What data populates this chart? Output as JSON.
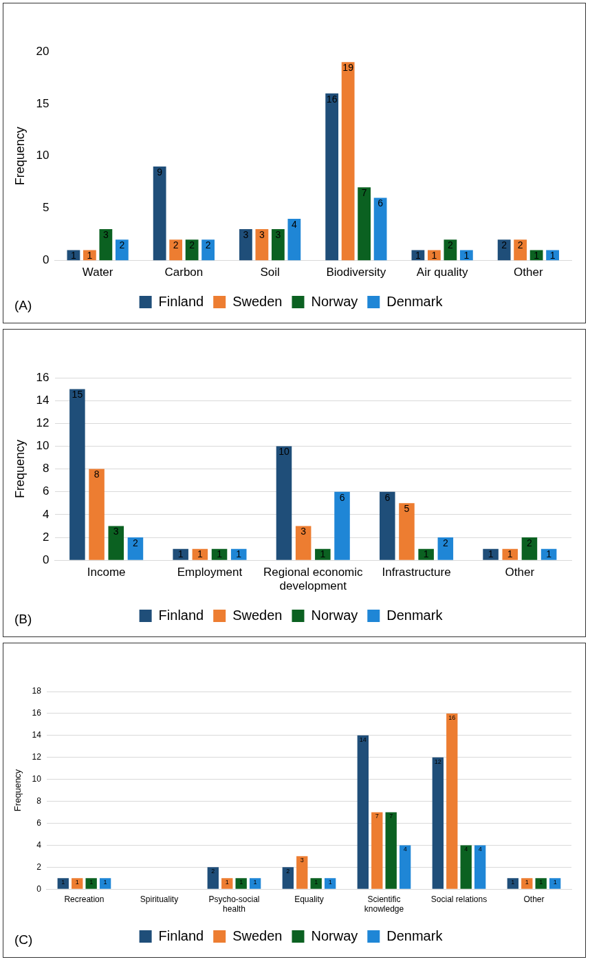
{
  "chart_data": [
    {
      "type": "bar",
      "categories": [
        "Water",
        "Carbon",
        "Soil",
        "Biodiversity",
        "Air quality",
        "Other"
      ],
      "ylabel": "Frequency",
      "ylim": [
        0,
        20
      ],
      "yticks": [
        0,
        5,
        10,
        15,
        20
      ],
      "grid": false,
      "legend": "bottom",
      "data_labels": true,
      "annotations": [
        "(A)"
      ],
      "series": [
        {
          "name": "Finland",
          "color": "#1f4e79",
          "values": [
            1,
            9,
            3,
            16,
            1,
            2
          ]
        },
        {
          "name": "Sweden",
          "color": "#ed7d31",
          "values": [
            1,
            2,
            3,
            19,
            1,
            2
          ]
        },
        {
          "name": "Norway",
          "color": "#0b6121",
          "values": [
            3,
            2,
            3,
            7,
            2,
            1
          ]
        },
        {
          "name": "Denmark",
          "color": "#1f86d6",
          "values": [
            2,
            2,
            4,
            6,
            1,
            1
          ]
        }
      ]
    },
    {
      "type": "bar",
      "categories": [
        "Income",
        "Employment",
        "Regional economic development",
        "Infrastructure",
        "Other"
      ],
      "ylabel": "Frequency",
      "ylim": [
        0,
        16
      ],
      "yticks": [
        0,
        2,
        4,
        6,
        8,
        10,
        12,
        14,
        16
      ],
      "grid": "y",
      "legend": "bottom",
      "data_labels": true,
      "annotations": [
        "(B)"
      ],
      "series": [
        {
          "name": "Finland",
          "color": "#1f4e79",
          "values": [
            15,
            1,
            10,
            6,
            1
          ]
        },
        {
          "name": "Sweden",
          "color": "#ed7d31",
          "values": [
            8,
            1,
            3,
            5,
            1
          ]
        },
        {
          "name": "Norway",
          "color": "#0b6121",
          "values": [
            3,
            1,
            1,
            1,
            2
          ]
        },
        {
          "name": "Denmark",
          "color": "#1f86d6",
          "values": [
            2,
            1,
            6,
            2,
            1
          ]
        }
      ]
    },
    {
      "type": "bar",
      "categories": [
        "Recreation",
        "Spirituality",
        "Psycho-social health",
        "Equality",
        "Scientific knowledge",
        "Social relations",
        "Other"
      ],
      "ylabel": "Frequency",
      "ylim": [
        0,
        18
      ],
      "yticks": [
        0,
        2,
        4,
        6,
        8,
        10,
        12,
        14,
        16,
        18
      ],
      "grid": "y",
      "legend": "bottom",
      "annotations": [
        "(C)"
      ],
      "series": [
        {
          "name": "Finland",
          "color": "#1f4e79",
          "values": [
            1,
            0,
            2,
            2,
            14,
            12,
            1
          ],
          "value_labels": [
            "1",
            null,
            "2",
            "2",
            "14",
            "12",
            "1"
          ]
        },
        {
          "name": "Sweden",
          "color": "#ed7d31",
          "values": [
            1,
            0,
            1,
            3,
            7,
            16,
            1
          ],
          "value_labels": [
            "1",
            null,
            "1",
            "3",
            "7",
            "16",
            "1"
          ]
        },
        {
          "name": "Norway",
          "color": "#0b6121",
          "values": [
            1,
            0,
            1,
            1,
            7,
            4,
            1
          ],
          "value_labels": [
            "1",
            null,
            "1",
            "1",
            "7",
            "4",
            "1"
          ]
        },
        {
          "name": "Denmark",
          "color": "#1f86d6",
          "values": [
            1,
            0,
            1,
            1,
            4,
            4,
            1
          ],
          "value_labels": [
            "1",
            null,
            "1",
            "1",
            "4",
            "4",
            "1"
          ]
        }
      ]
    }
  ]
}
